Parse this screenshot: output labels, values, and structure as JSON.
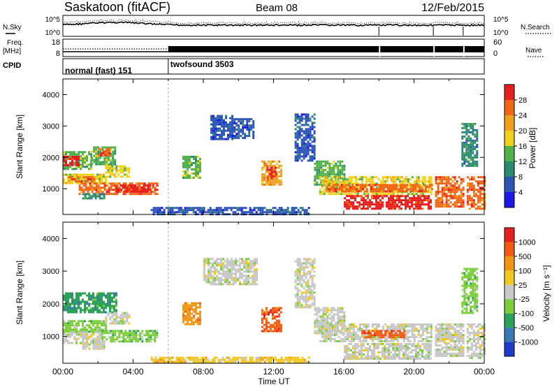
{
  "header": {
    "title": "Saskatoon (fitACF)",
    "beam": "Beam 08",
    "date": "12/Feb/2015"
  },
  "noise_panel": {
    "left_label": "N.Sky",
    "right_label": "N.Search",
    "left_ticks": [
      "10^5",
      "10^0"
    ],
    "right_ticks": [
      "10^5",
      "10^0"
    ]
  },
  "freq_panel": {
    "left_label_1": "Freq.",
    "left_label_2": "[MHz]",
    "left_ticks": [
      "18",
      "8"
    ],
    "right_ticks": [
      "60",
      "0"
    ],
    "right_label": "Nave"
  },
  "cpid_panel": {
    "label": "CPID",
    "segments": [
      {
        "name": "normal (fast) 151",
        "start_hour": 0,
        "end_hour": 6
      },
      {
        "name": "twofsound 3503",
        "start_hour": 6,
        "end_hour": 24
      }
    ]
  },
  "chart_data": [
    {
      "type": "heatmap",
      "parameter": "power",
      "xlabel": "",
      "ylabel": "Slant Range [km]",
      "xlim": [
        0,
        24
      ],
      "ylim": [
        180,
        4500
      ],
      "yticks": [
        1000,
        2000,
        3000,
        4000
      ],
      "colorbar": {
        "label": "Power [dB]",
        "tick_labels": [
          "4",
          "8",
          "12",
          "16",
          "20",
          "24",
          "28"
        ],
        "colors": [
          "#1a1ae6",
          "#2d55b5",
          "#2d8a70",
          "#52b04a",
          "#f0d21e",
          "#f0a01e",
          "#f06614",
          "#e61e1e"
        ]
      },
      "regions": [
        {
          "t0": 0.0,
          "t1": 1.6,
          "r0": 1650,
          "r1": 2200,
          "c": 3
        },
        {
          "t0": 0.0,
          "t1": 0.9,
          "r0": 1750,
          "r1": 2050,
          "c": 7
        },
        {
          "t0": 1.6,
          "t1": 3.0,
          "r0": 1800,
          "r1": 2350,
          "c": 3
        },
        {
          "t0": 2.0,
          "t1": 2.6,
          "r0": 2050,
          "r1": 2300,
          "c": 6
        },
        {
          "t0": 0.0,
          "t1": 2.5,
          "r0": 1180,
          "r1": 1480,
          "c": 4
        },
        {
          "t0": 0.3,
          "t1": 1.8,
          "r0": 1250,
          "r1": 1400,
          "c": 6
        },
        {
          "t0": 0.9,
          "t1": 5.4,
          "r0": 850,
          "r1": 1200,
          "c": 6
        },
        {
          "t0": 3.0,
          "t1": 5.0,
          "r0": 880,
          "r1": 1140,
          "c": 7
        },
        {
          "t0": 1.1,
          "t1": 2.4,
          "r0": 680,
          "r1": 860,
          "c": 2
        },
        {
          "t0": 2.4,
          "t1": 3.8,
          "r0": 1400,
          "r1": 1750,
          "c": 4
        },
        {
          "t0": 6.8,
          "t1": 7.8,
          "r0": 1350,
          "r1": 2050,
          "c": 3
        },
        {
          "t0": 8.4,
          "t1": 9.6,
          "r0": 2600,
          "r1": 3350,
          "c": 1
        },
        {
          "t0": 9.6,
          "t1": 10.8,
          "r0": 2600,
          "r1": 3250,
          "c": 1
        },
        {
          "t0": 11.3,
          "t1": 12.4,
          "r0": 1150,
          "r1": 1900,
          "c": 5
        },
        {
          "t0": 11.6,
          "t1": 12.1,
          "r0": 1300,
          "r1": 1700,
          "c": 7
        },
        {
          "t0": 13.2,
          "t1": 14.3,
          "r0": 1900,
          "r1": 3400,
          "c": 1
        },
        {
          "t0": 14.3,
          "t1": 16.0,
          "r0": 1100,
          "r1": 1900,
          "c": 3
        },
        {
          "t0": 14.6,
          "t1": 21.0,
          "r0": 830,
          "r1": 1400,
          "c": 4
        },
        {
          "t0": 15.0,
          "t1": 21.0,
          "r0": 900,
          "r1": 1150,
          "c": 6
        },
        {
          "t0": 16.0,
          "t1": 21.0,
          "r0": 350,
          "r1": 800,
          "c": 7
        },
        {
          "t0": 21.2,
          "t1": 22.8,
          "r0": 400,
          "r1": 1400,
          "c": 6
        },
        {
          "t0": 23.0,
          "t1": 24.0,
          "r0": 350,
          "r1": 1400,
          "c": 6
        },
        {
          "t0": 5.0,
          "t1": 14.0,
          "r0": 200,
          "r1": 420,
          "c": 1
        },
        {
          "t0": 22.7,
          "t1": 23.6,
          "r0": 1700,
          "r1": 3100,
          "c": 2
        }
      ]
    },
    {
      "type": "heatmap",
      "parameter": "velocity",
      "xlabel": "Time UT",
      "ylabel": "Slant Range [km]",
      "xlim": [
        0,
        24
      ],
      "ylim": [
        180,
        4500
      ],
      "xtick_labels": [
        "00:00",
        "04:00",
        "08:00",
        "12:00",
        "16:00",
        "20:00",
        "00:00"
      ],
      "yticks": [
        1000,
        2000,
        3000,
        4000
      ],
      "colorbar": {
        "label": "Velocity [m s⁻¹]",
        "tick_labels": [
          "1000",
          "500",
          "100",
          "25",
          "-25",
          "-100",
          "-500",
          "-1000"
        ],
        "colors": [
          "#1e3cc8",
          "#3a78b4",
          "#2ea05a",
          "#7ccd3a",
          "#c8c8c8",
          "#f0c81e",
          "#f09614",
          "#f05a14",
          "#e61e1e"
        ]
      },
      "regions": [
        {
          "t0": 0.0,
          "t1": 3.0,
          "r0": 1750,
          "r1": 2350,
          "c": 2
        },
        {
          "t0": 0.0,
          "t1": 2.5,
          "r0": 1150,
          "r1": 1500,
          "c": 3
        },
        {
          "t0": 0.0,
          "t1": 2.2,
          "r0": 780,
          "r1": 1150,
          "c": 4
        },
        {
          "t0": 2.2,
          "t1": 5.4,
          "r0": 850,
          "r1": 1200,
          "c": 3
        },
        {
          "t0": 1.1,
          "t1": 2.4,
          "r0": 650,
          "r1": 850,
          "c": 4
        },
        {
          "t0": 2.4,
          "t1": 3.8,
          "r0": 1400,
          "r1": 1750,
          "c": 4
        },
        {
          "t0": 6.8,
          "t1": 7.8,
          "r0": 1350,
          "r1": 2050,
          "c": 6
        },
        {
          "t0": 8.0,
          "t1": 11.0,
          "r0": 2600,
          "r1": 3400,
          "c": 4
        },
        {
          "t0": 11.3,
          "t1": 12.4,
          "r0": 1150,
          "r1": 1900,
          "c": 7
        },
        {
          "t0": 13.2,
          "t1": 14.3,
          "r0": 1900,
          "r1": 3400,
          "c": 4
        },
        {
          "t0": 14.3,
          "t1": 16.0,
          "r0": 1100,
          "r1": 1900,
          "c": 4
        },
        {
          "t0": 14.6,
          "t1": 21.0,
          "r0": 830,
          "r1": 1400,
          "c": 4
        },
        {
          "t0": 16.0,
          "t1": 21.0,
          "r0": 350,
          "r1": 800,
          "c": 4
        },
        {
          "t0": 21.2,
          "t1": 22.8,
          "r0": 400,
          "r1": 1400,
          "c": 4
        },
        {
          "t0": 23.0,
          "t1": 24.0,
          "r0": 350,
          "r1": 1400,
          "c": 4
        },
        {
          "t0": 5.0,
          "t1": 14.0,
          "r0": 200,
          "r1": 380,
          "c": 5
        },
        {
          "t0": 17.0,
          "t1": 19.5,
          "r0": 950,
          "r1": 1200,
          "c": 7
        },
        {
          "t0": 22.7,
          "t1": 23.6,
          "r0": 1700,
          "r1": 3100,
          "c": 3
        }
      ]
    }
  ]
}
